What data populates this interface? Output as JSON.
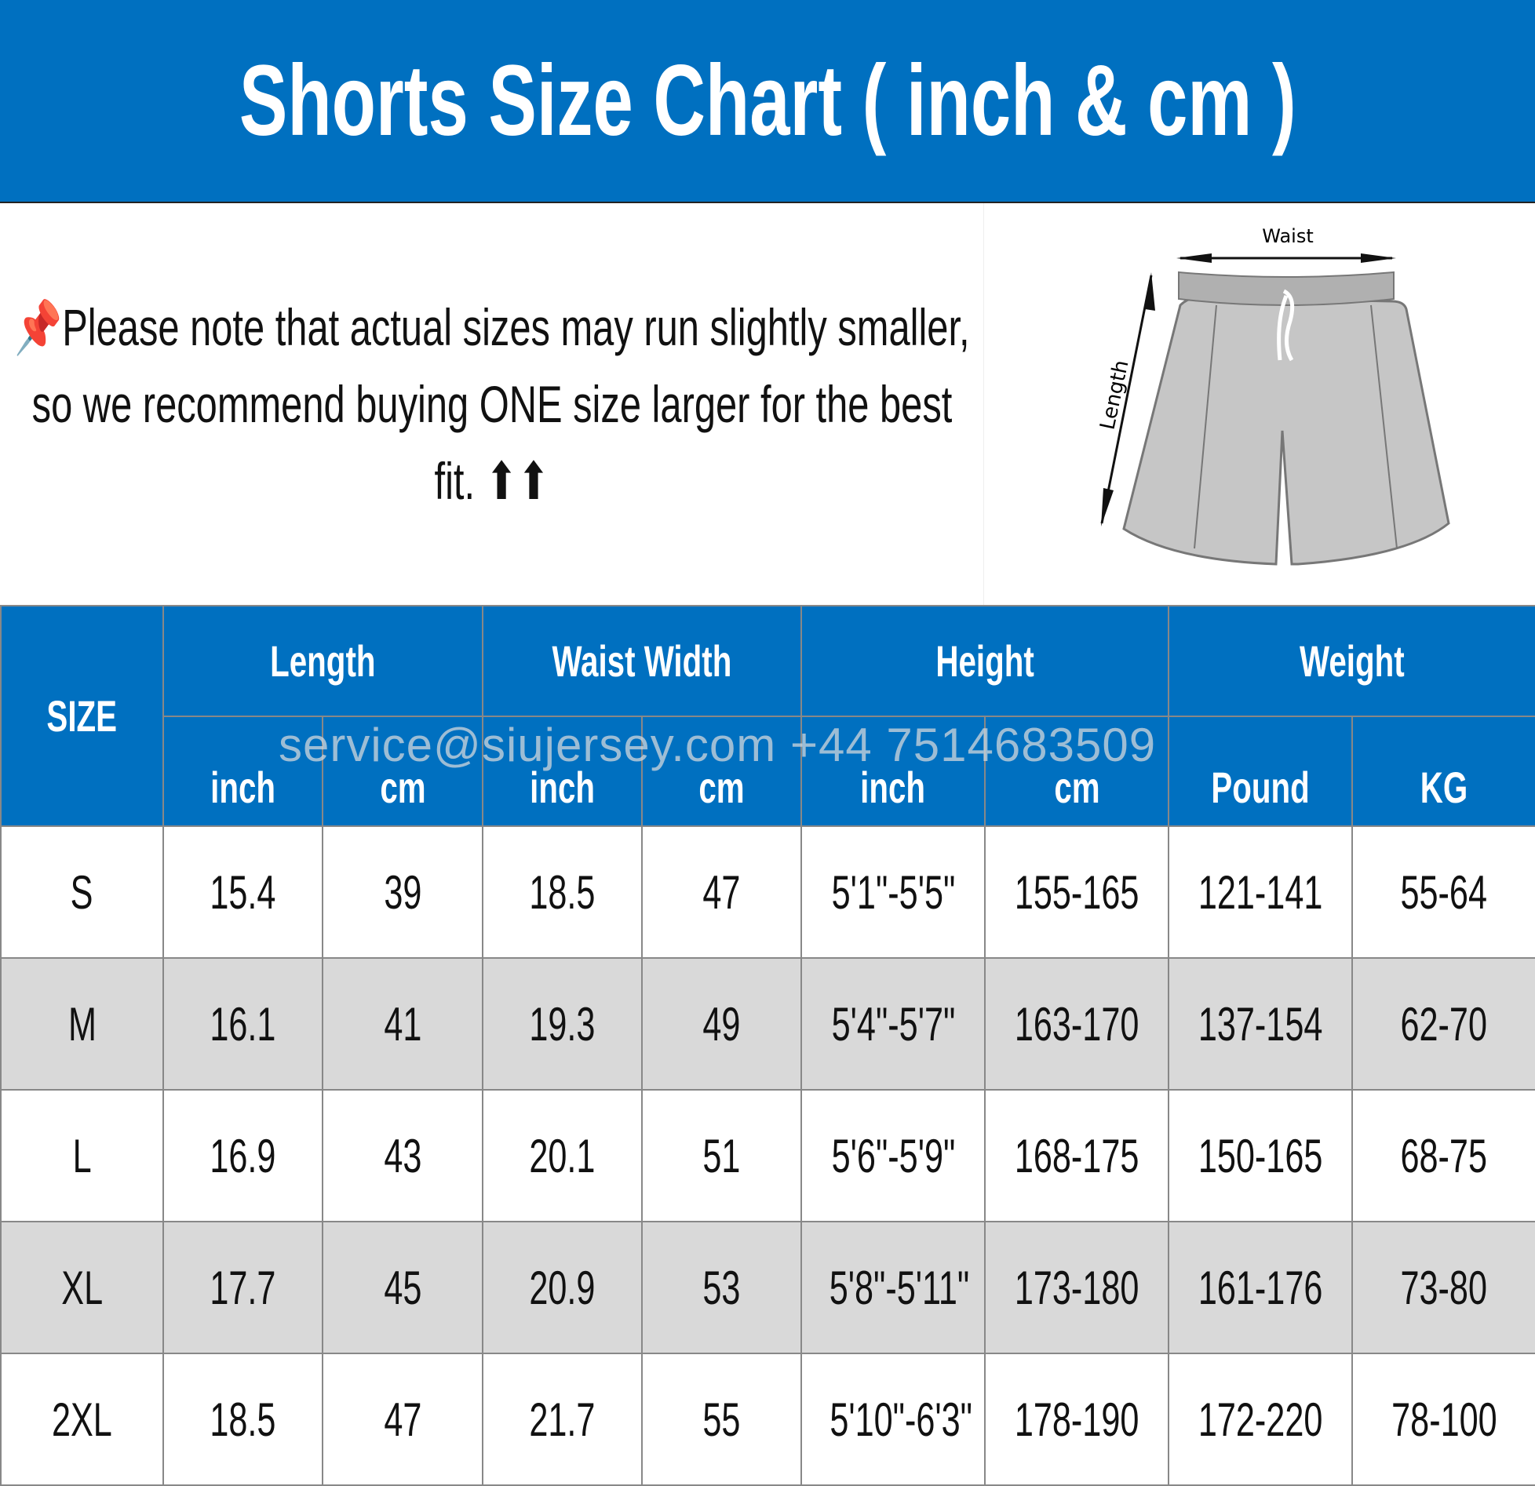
{
  "title": "Shorts Size Chart ( inch & cm )",
  "note": {
    "icon": "pushpin-icon",
    "text": "Please note that actual sizes may run slightly smaller, so we recommend buying ONE size larger for the best fit. ⬆⬆"
  },
  "diagram": {
    "waist_label": "Waist",
    "length_label": "Length"
  },
  "watermark": "service@siujersey.com  +44 7514683509",
  "table": {
    "size_header": "SIZE",
    "groups": [
      "Length",
      "Waist Width",
      "Height",
      "Weight"
    ],
    "subheaders": [
      "inch",
      "cm",
      "inch",
      "cm",
      "inch",
      "cm",
      "Pound",
      "KG"
    ],
    "rows": [
      [
        "S",
        "15.4",
        "39",
        "18.5",
        "47",
        "5'1\"-5'5\"",
        "155-165",
        "121-141",
        "55-64"
      ],
      [
        "M",
        "16.1",
        "41",
        "19.3",
        "49",
        "5'4\"-5'7\"",
        "163-170",
        "137-154",
        "62-70"
      ],
      [
        "L",
        "16.9",
        "43",
        "20.1",
        "51",
        "5'6\"-5'9\"",
        "168-175",
        "150-165",
        "68-75"
      ],
      [
        "XL",
        "17.7",
        "45",
        "20.9",
        "53",
        "5'8\"-5'11\"",
        "173-180",
        "161-176",
        "73-80"
      ],
      [
        "2XL",
        "18.5",
        "47",
        "21.7",
        "55",
        "5'10\"-6'3\"",
        "178-190",
        "172-220",
        "78-100"
      ]
    ]
  },
  "colors": {
    "header": "#0070C0",
    "alt_row": "#d9d9d9"
  }
}
